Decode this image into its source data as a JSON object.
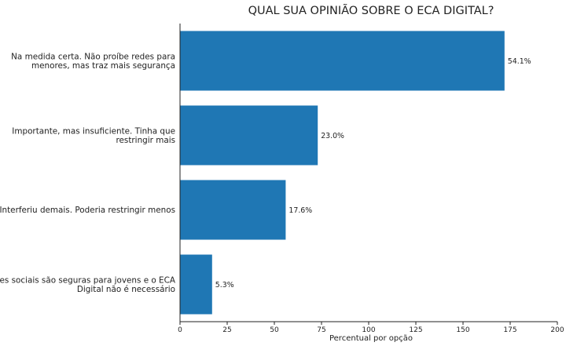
{
  "chart_data": {
    "type": "bar",
    "orientation": "horizontal",
    "title": "QUAL SUA OPINIÃO SOBRE O ECA DIGITAL?",
    "xlabel": "Percentual por opção",
    "ylabel": "",
    "xlim": [
      0,
      200
    ],
    "xticks": [
      "0",
      "25",
      "50",
      "75",
      "100",
      "125",
      "150",
      "175",
      "200"
    ],
    "categories": [
      [
        "Na medida certa. Não proíbe redes para",
        "menores, mas traz mais segurança"
      ],
      [
        "Importante, mas insuficiente. Tinha que",
        "restringir mais"
      ],
      [
        "Interferiu demais. Poderia restringir menos"
      ],
      [
        "Redes sociais são seguras para jovens e o ECA",
        "Digital não é necessário"
      ]
    ],
    "values": [
      172,
      73,
      56,
      17
    ],
    "data_labels": [
      "54.1%",
      "23.0%",
      "17.6%",
      "5.3%"
    ],
    "bar_color": "#1f77b4",
    "grid": false,
    "legend": "none"
  }
}
